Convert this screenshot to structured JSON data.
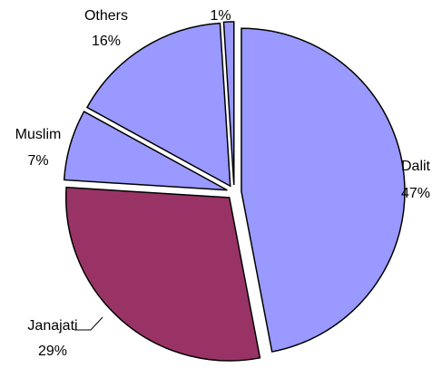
{
  "chart_data": {
    "type": "pie",
    "title": "",
    "legend": "none",
    "start_angle_deg": 0,
    "direction": "clockwise",
    "slices": [
      {
        "label": "Dalit",
        "pct_text": "47%",
        "value": 47,
        "color": "#9999FF",
        "exploded": true
      },
      {
        "label": "Janajati",
        "pct_text": "29%",
        "value": 29,
        "color": "#993366",
        "exploded": true
      },
      {
        "label": "Muslim",
        "pct_text": "7%",
        "value": 7,
        "color": "#9999FF",
        "exploded": true
      },
      {
        "label": "Others",
        "pct_text": "16%",
        "value": 16,
        "color": "#9999FF",
        "exploded": true
      },
      {
        "label": "",
        "pct_text": "1%",
        "value": 1,
        "color": "#9999FF",
        "exploded": true
      }
    ]
  }
}
